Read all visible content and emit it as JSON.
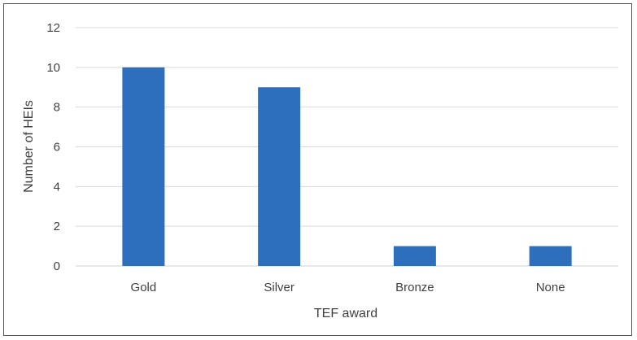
{
  "chart_data": {
    "type": "bar",
    "categories": [
      "Gold",
      "Silver",
      "Bronze",
      "None"
    ],
    "values": [
      10,
      9,
      1,
      1
    ],
    "title": "",
    "xlabel": "TEF award",
    "ylabel": "Number of HEIs",
    "ylim": [
      0,
      12
    ],
    "yticks": [
      "0",
      "2",
      "4",
      "6",
      "8",
      "10",
      "12"
    ],
    "grid": true,
    "bar_color": "#2e6fbd",
    "grid_color": "#d9d9d9"
  }
}
